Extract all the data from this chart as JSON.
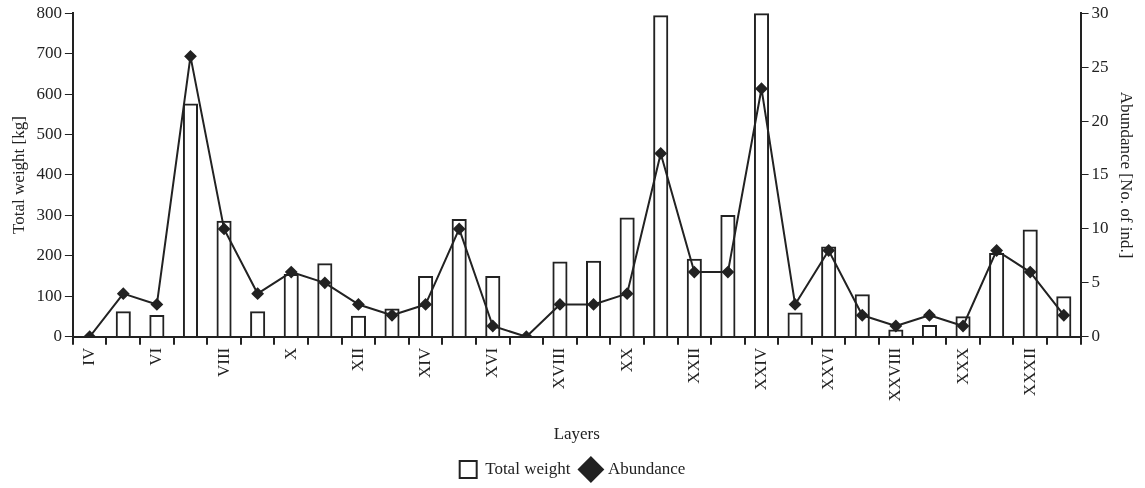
{
  "chart_data": {
    "type": "bar",
    "xlabel": "Layers",
    "ylabel": "Total weight [kg]",
    "y2label": "Abundance [No. of ind.]",
    "categories": [
      "IV",
      null,
      "VI",
      null,
      "VIII",
      null,
      "X",
      null,
      "XII",
      null,
      "XIV",
      null,
      "XVI",
      null,
      "XVIII",
      null,
      "XX",
      null,
      "XXII",
      null,
      "XXIV",
      null,
      "XXVI",
      null,
      "XXVIII",
      null,
      "XXX",
      null,
      "XXXII",
      null
    ],
    "series": [
      {
        "name": "Total weight",
        "color": "#222222",
        "values": [
          0,
          63,
          54,
          577,
          287,
          63,
          155,
          182,
          52,
          70,
          150,
          291,
          150,
          0,
          186,
          188,
          295,
          795,
          193,
          301,
          800,
          60,
          223,
          105,
          18,
          29,
          51,
          207,
          265,
          100
        ]
      },
      {
        "name": "Abundance",
        "type": "line",
        "axis": "y2",
        "color": "#222222",
        "values": [
          0,
          4,
          3,
          26,
          10,
          4,
          6,
          5,
          3,
          2,
          3,
          10,
          1,
          0,
          3,
          3,
          4,
          17,
          6,
          6,
          23,
          3,
          8,
          2,
          1,
          2,
          1,
          8,
          6,
          2
        ]
      }
    ],
    "ylim": [
      0,
      800
    ],
    "yticks": [
      0,
      100,
      200,
      300,
      400,
      500,
      600,
      700,
      800
    ],
    "y2lim": [
      0,
      30
    ],
    "y2ticks": [
      0,
      5,
      10,
      15,
      20,
      25,
      30
    ],
    "marker": "diamond",
    "legend": "bottom",
    "grid": false
  }
}
